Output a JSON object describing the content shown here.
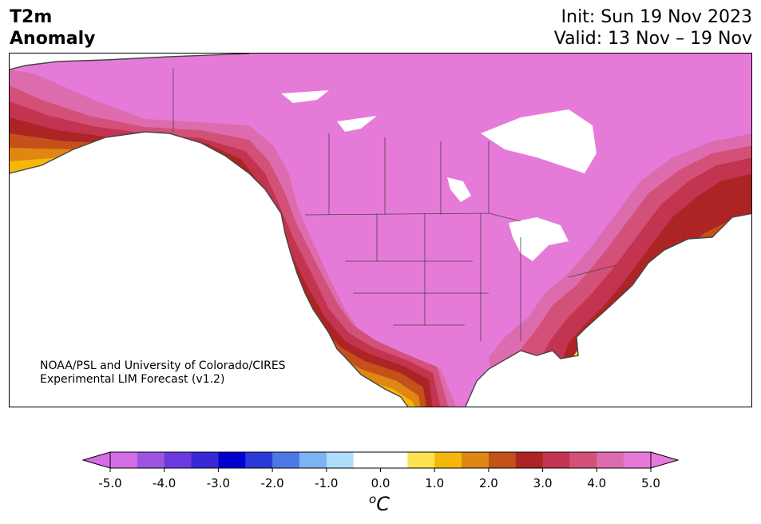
{
  "header": {
    "title_line1": "T2m",
    "title_line2": "Anomaly",
    "init_text": "Init: Sun 19 Nov 2023",
    "valid_text": "Valid: 13 Nov – 19 Nov"
  },
  "map": {
    "credit_line1": "NOAA/PSL and University of Colorado/CIRES",
    "credit_line2": "Experimental LIM Forecast (v1.2)"
  },
  "colorbar": {
    "ticks": [
      "-5.0",
      "-4.0",
      "-3.0",
      "-2.0",
      "-1.0",
      "0.0",
      "1.0",
      "2.0",
      "3.0",
      "4.0",
      "5.0"
    ],
    "unit_base": "C",
    "unit_sup": "o",
    "colors": [
      "#d66de8",
      "#9b55e0",
      "#6a3ade",
      "#3a28d8",
      "#0000d0",
      "#2a3ad8",
      "#4e78e6",
      "#7ab4f2",
      "#aedcfa",
      "#ffffff",
      "#ffffff",
      "#fee252",
      "#f5b70a",
      "#de8712",
      "#c4501a",
      "#ad2424",
      "#c23450",
      "#d35078",
      "#dd6cae",
      "#e67ad9"
    ]
  }
}
